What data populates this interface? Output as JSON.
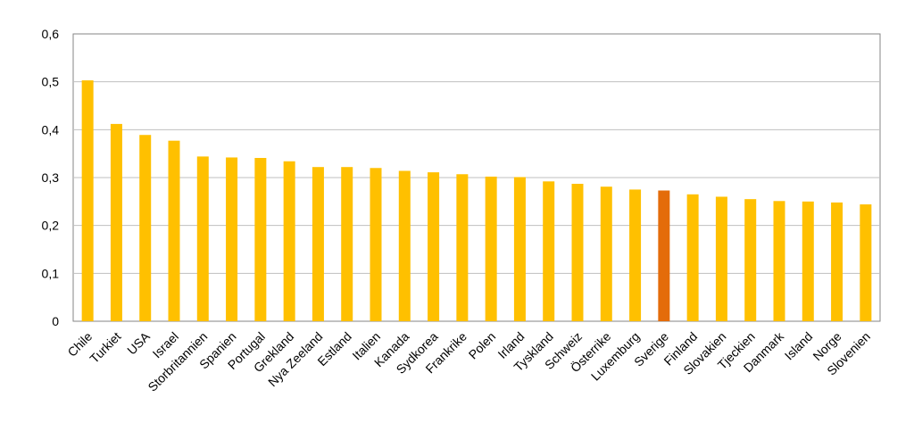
{
  "chart_data": {
    "type": "bar",
    "categories": [
      "Chile",
      "Turkiet",
      "USA",
      "Israel",
      "Storbritannien",
      "Spanien",
      "Portugal",
      "Grekland",
      "Nya Zeeland",
      "Estland",
      "Italien",
      "Kanada",
      "Sydkorea",
      "Frankrike",
      "Polen",
      "Irland",
      "Tyskland",
      "Schweiz",
      "Österrike",
      "Luxemburg",
      "Sverige",
      "Finland",
      "Slovakien",
      "Tjeckien",
      "Danmark",
      "Island",
      "Norge",
      "Slovenien"
    ],
    "values": [
      0.503,
      0.412,
      0.389,
      0.377,
      0.344,
      0.342,
      0.341,
      0.334,
      0.322,
      0.322,
      0.32,
      0.314,
      0.311,
      0.307,
      0.302,
      0.301,
      0.292,
      0.287,
      0.281,
      0.275,
      0.273,
      0.265,
      0.26,
      0.255,
      0.251,
      0.25,
      0.248,
      0.244
    ],
    "ylim": [
      0,
      0.6
    ],
    "yticks": [
      "0",
      "0,1",
      "0,2",
      "0,3",
      "0,4",
      "0,5",
      "0,6"
    ],
    "grid": true,
    "colors": {
      "bar": "#FFC000",
      "highlight": "#E46C0A",
      "grid": "#BFBFBF",
      "axis": "#868686"
    },
    "highlight_category": "Sverige"
  }
}
